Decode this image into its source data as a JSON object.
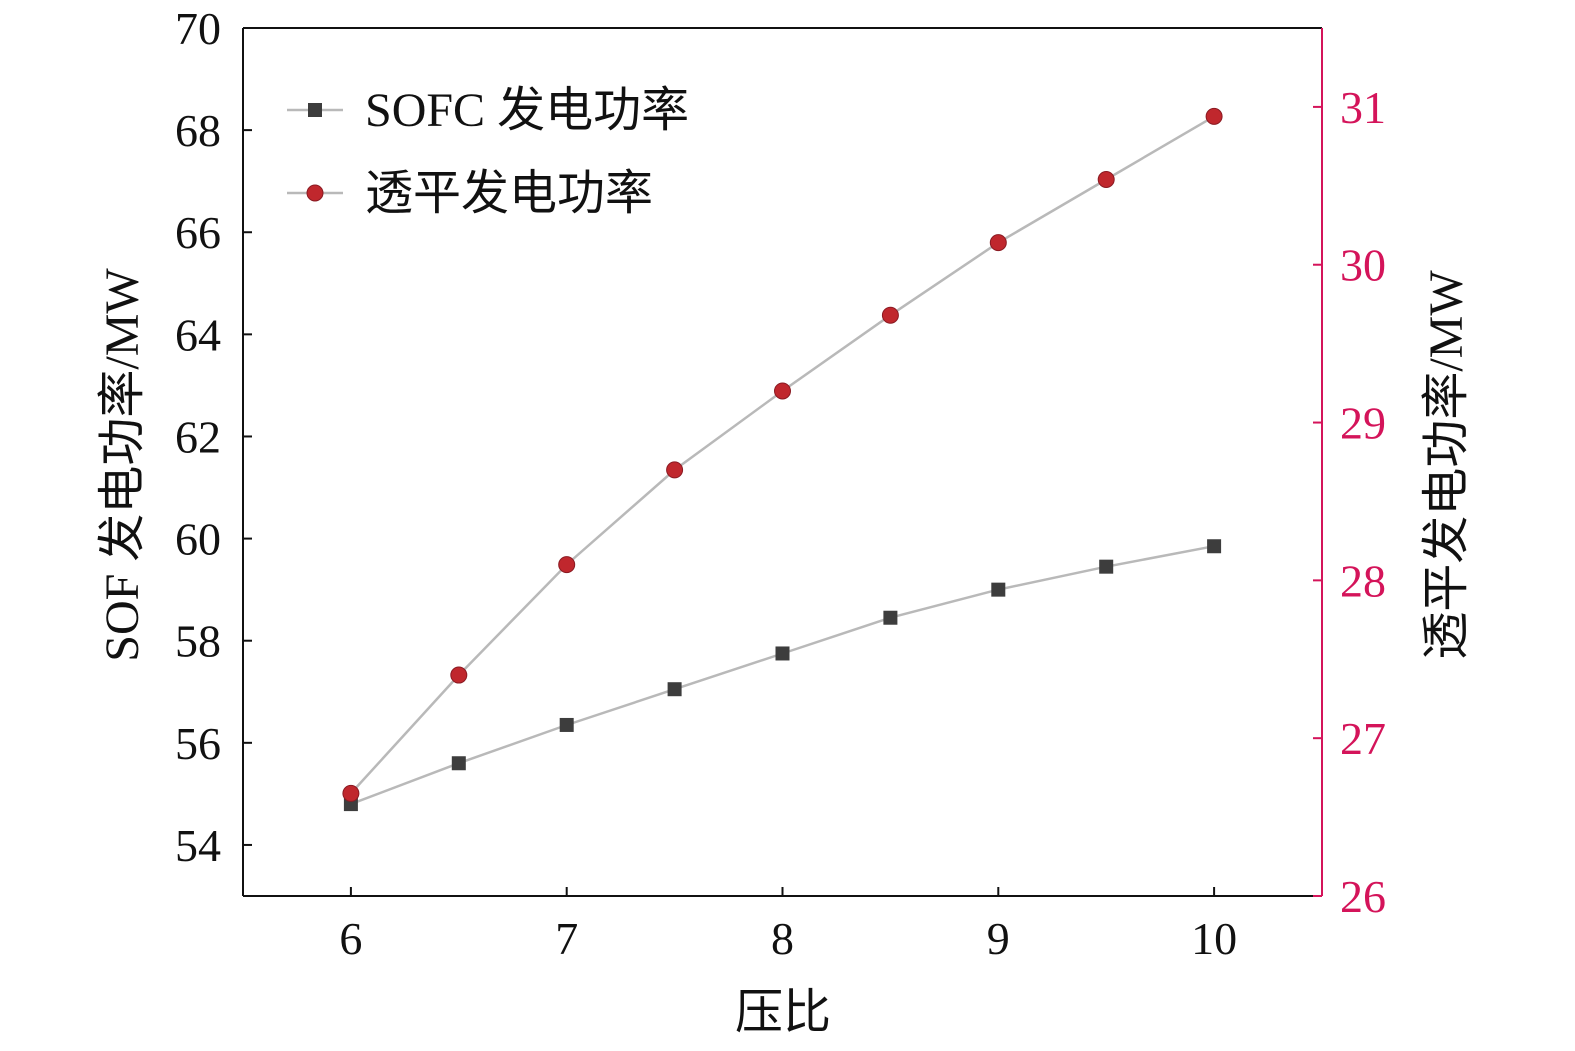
{
  "chart_data": {
    "type": "line",
    "title": "",
    "xlabel": "压比",
    "ylabel_left": "SOF 发电功率/MW",
    "ylabel_right": "透平发电功率/MW",
    "x": [
      6,
      6.5,
      7,
      7.5,
      8,
      8.5,
      9,
      9.5,
      10
    ],
    "xlim": [
      5.5,
      10.5
    ],
    "xticks": [
      "6",
      "7",
      "8",
      "9",
      "10"
    ],
    "ylim_left": [
      53,
      70
    ],
    "yticks_left": [
      "54",
      "56",
      "58",
      "60",
      "62",
      "64",
      "66",
      "68",
      "70"
    ],
    "ylim_right": [
      26,
      31.5
    ],
    "yticks_right": [
      "26",
      "27",
      "28",
      "29",
      "30",
      "31"
    ],
    "grid": false,
    "legend_position": "top-left",
    "series": [
      {
        "name": "SOFC 发电功率",
        "axis": "left",
        "marker": "square",
        "color": "#3d3d3d",
        "values": [
          54.8,
          55.6,
          56.35,
          57.05,
          57.75,
          58.45,
          59.0,
          59.45,
          59.85
        ]
      },
      {
        "name": "透平发电功率",
        "axis": "right",
        "marker": "circle",
        "color": "#c0272d",
        "values": [
          26.65,
          27.4,
          28.1,
          28.7,
          29.2,
          29.68,
          30.14,
          30.54,
          30.94
        ]
      }
    ],
    "colors": {
      "axis": "#111111",
      "right_axis": "#d4145a",
      "line": "#b9b9b9"
    }
  }
}
